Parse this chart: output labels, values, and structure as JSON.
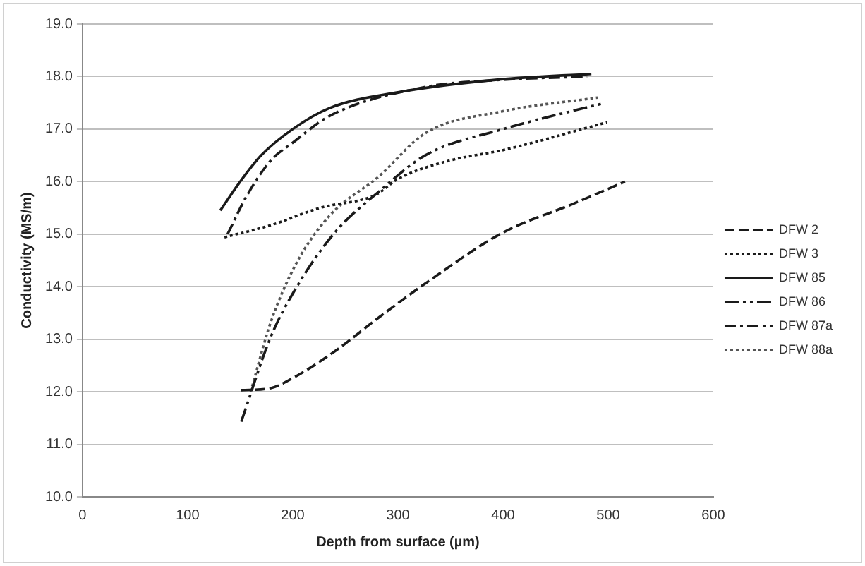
{
  "chart_data": {
    "type": "line",
    "xlabel": "Depth from surface (µm)",
    "ylabel": "Conductivity (MS/m)",
    "xlim": [
      0,
      600
    ],
    "xticks": [
      0,
      100,
      200,
      300,
      400,
      500,
      600
    ],
    "ylim": [
      10,
      19
    ],
    "yticks": [
      {
        "value": 10,
        "label": "10.0"
      },
      {
        "value": 11,
        "label": "11.0"
      },
      {
        "value": 12,
        "label": "12.0"
      },
      {
        "value": 13,
        "label": "13.0"
      },
      {
        "value": 14,
        "label": "14.0"
      },
      {
        "value": 15,
        "label": "15.0"
      },
      {
        "value": 16,
        "label": "16.0"
      },
      {
        "value": 17,
        "label": "17.0"
      },
      {
        "value": 18,
        "label": "18.0"
      },
      {
        "value": 19,
        "label": "19.0"
      }
    ],
    "grid": "y",
    "legend": "right",
    "marker": "none",
    "series": [
      {
        "name": "DFW 2",
        "color": "#1a1a1a",
        "line_style": "dashed",
        "x": [
          151,
          179,
          200,
          240,
          279,
          326,
          400,
          467,
          516
        ],
        "values": [
          12.03,
          12.07,
          12.26,
          12.77,
          13.37,
          14.06,
          15.03,
          15.58,
          16.0
        ]
      },
      {
        "name": "DFW 3",
        "color": "#1a1a1a",
        "line_style": "dotted",
        "x": [
          135,
          179,
          226,
          279,
          300,
          349,
          400,
          499
        ],
        "values": [
          14.94,
          15.17,
          15.5,
          15.75,
          16.05,
          16.4,
          16.6,
          17.13
        ]
      },
      {
        "name": "DFW 85",
        "color": "#1a1a1a",
        "line_style": "solid",
        "x": [
          131,
          150,
          170,
          200,
          235,
          300,
          400,
          484
        ],
        "values": [
          15.45,
          16.0,
          16.5,
          17.0,
          17.4,
          17.7,
          17.95,
          18.05
        ]
      },
      {
        "name": "DFW 86",
        "color": "#1a1a1a",
        "line_style": "dashdotdot",
        "x": [
          151,
          179,
          203,
          240,
          282,
          326,
          400,
          493
        ],
        "values": [
          11.43,
          13.04,
          13.97,
          15.03,
          15.81,
          16.5,
          17.0,
          17.48
        ]
      },
      {
        "name": "DFW 87a",
        "color": "#1a1a1a",
        "line_style": "dashdot",
        "x": [
          138,
          156,
          179,
          200,
          235,
          326,
          400,
          480
        ],
        "values": [
          15.0,
          15.72,
          16.4,
          16.74,
          17.25,
          17.8,
          17.94,
          18.0
        ]
      },
      {
        "name": "DFW 88a",
        "color": "#555555",
        "line_style": "dotted",
        "x": [
          160,
          179,
          203,
          235,
          282,
          326,
          400,
          490
        ],
        "values": [
          12.0,
          13.32,
          14.43,
          15.35,
          16.1,
          16.92,
          17.34,
          17.6
        ]
      }
    ]
  }
}
